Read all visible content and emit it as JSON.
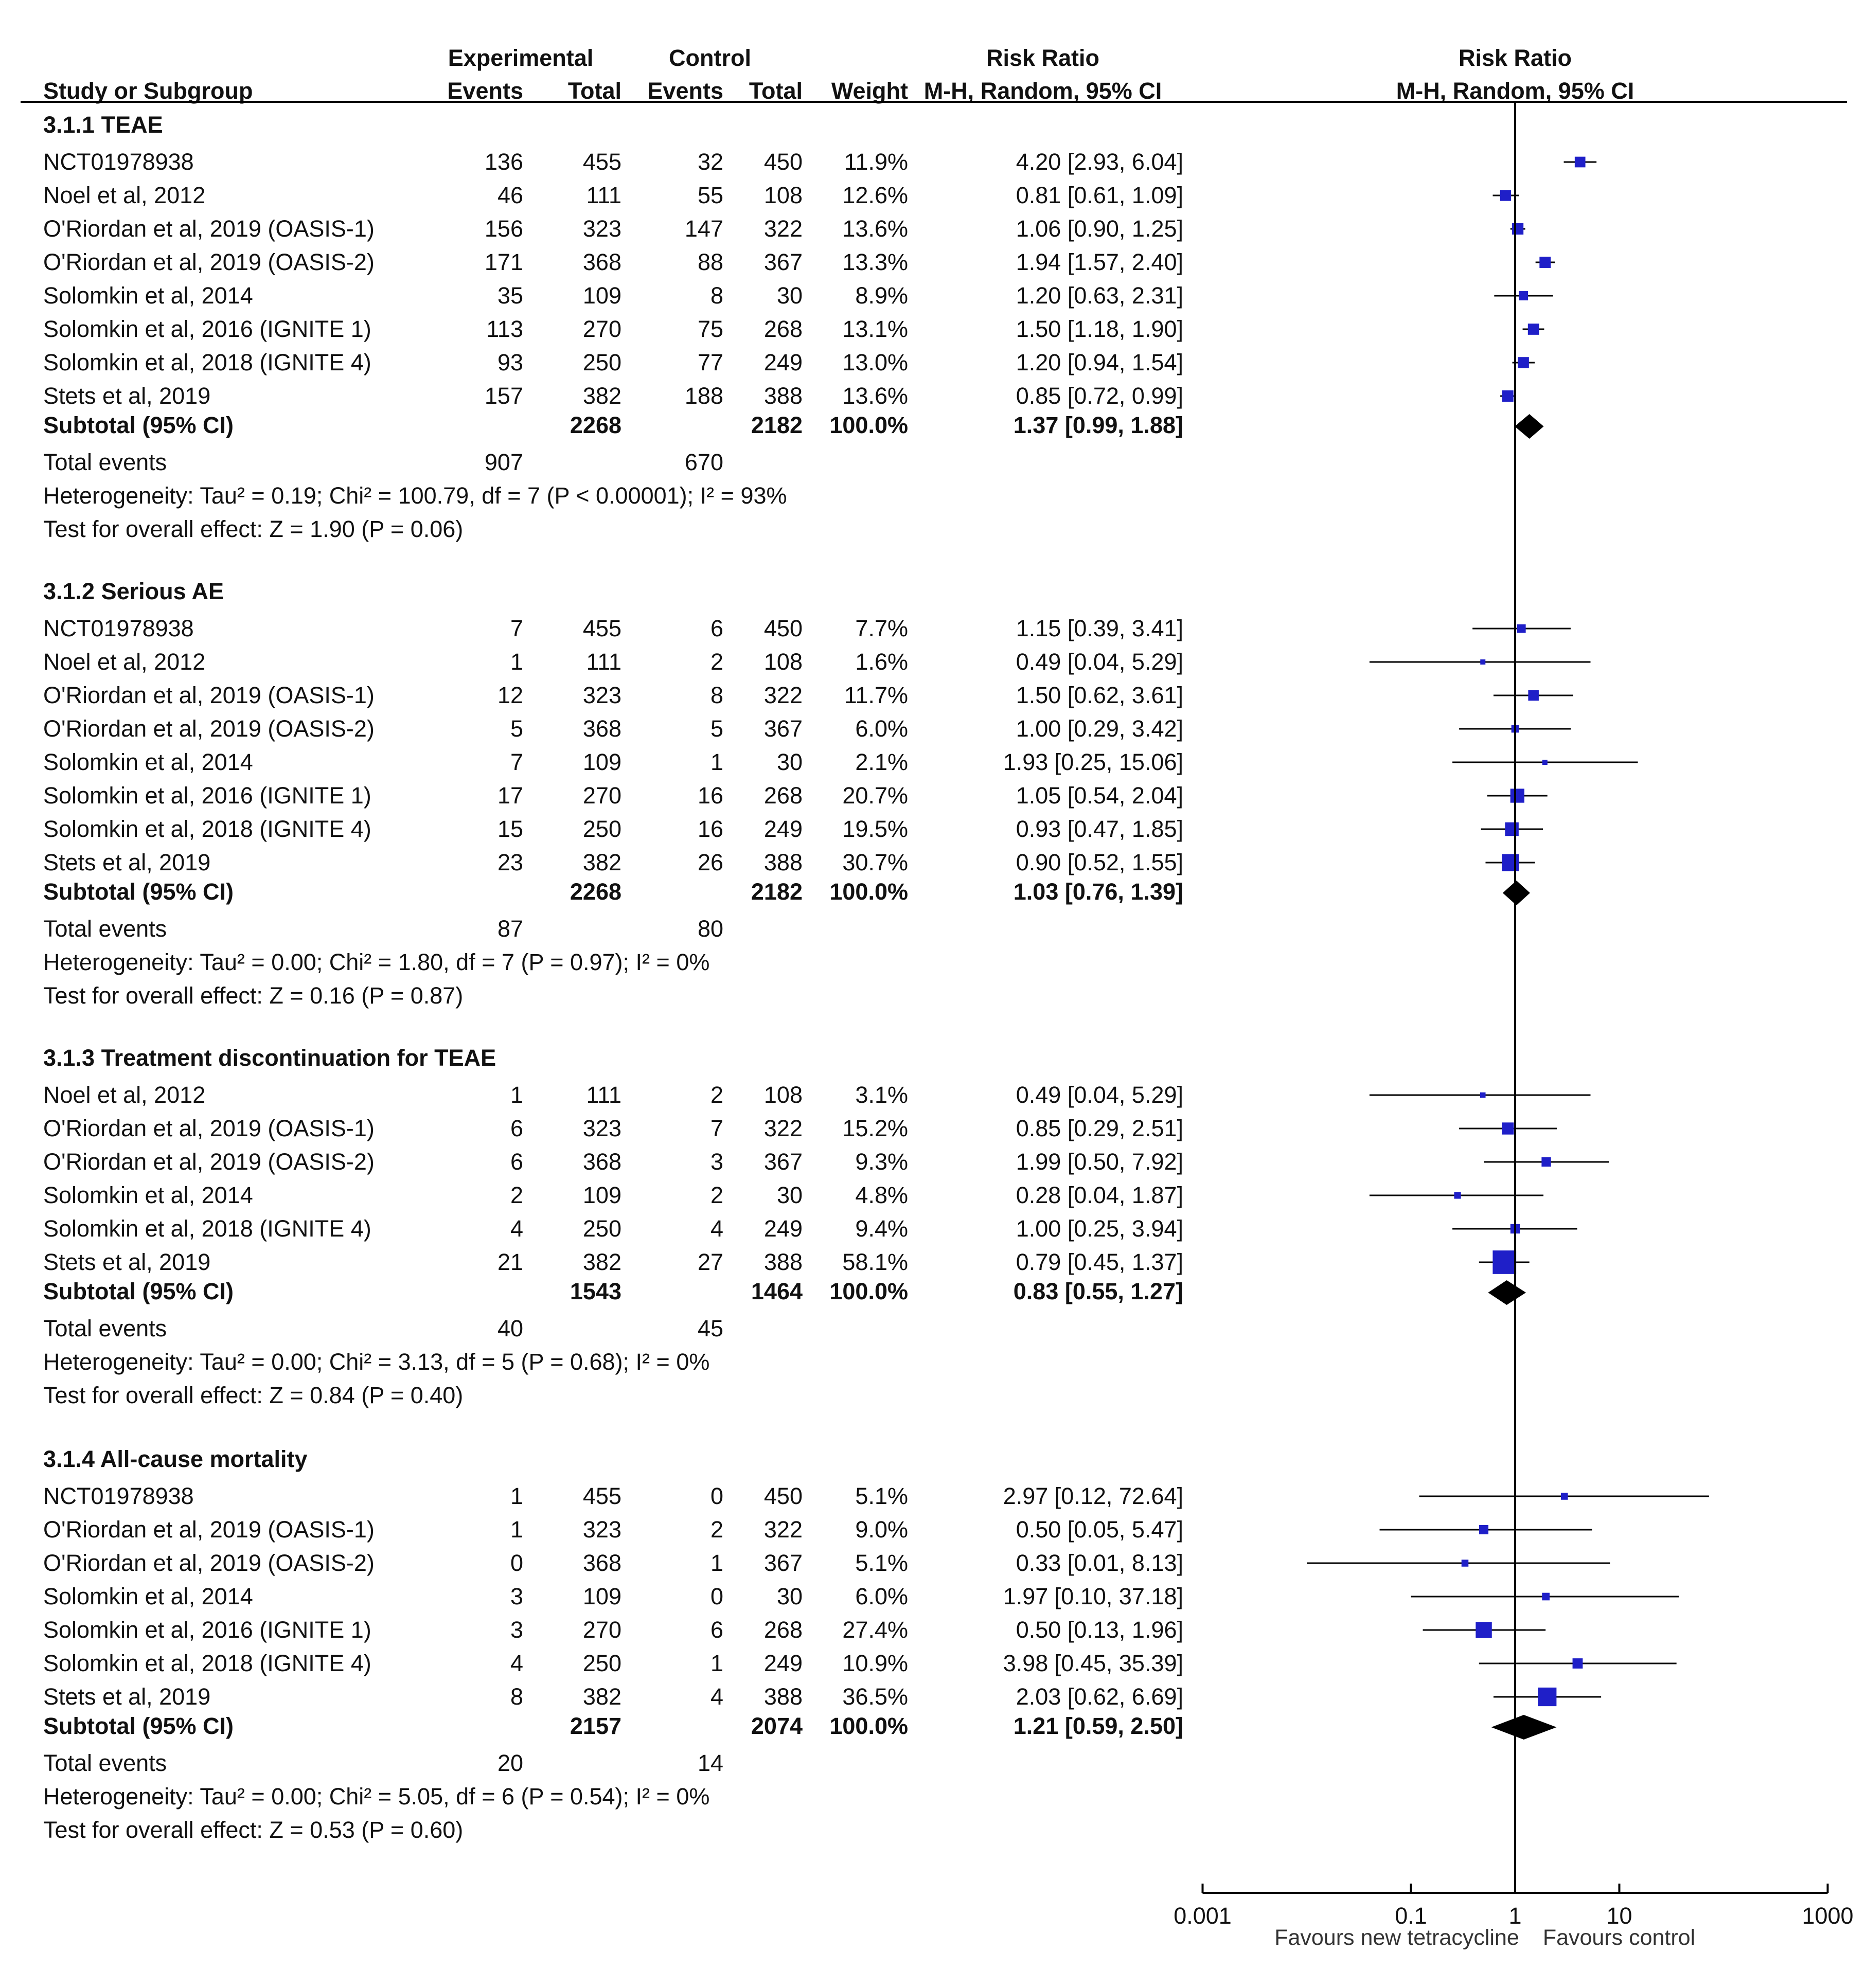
{
  "chart_data": {
    "type": "forest",
    "header": {
      "study_col": "Study or Subgroup",
      "experimental": "Experimental",
      "control": "Control",
      "events": "Events",
      "total": "Total",
      "weight": "Weight",
      "effect_title": "Risk Ratio",
      "effect_method": "M-H, Random, 95% CI",
      "plot_title": "Risk Ratio",
      "plot_method": "M-H, Random, 95% CI"
    },
    "axis": {
      "scale": "log",
      "ticks": [
        0.001,
        0.1,
        1,
        10,
        1000
      ],
      "tick_labels": [
        "0.001",
        "0.1",
        "1",
        "10",
        "1000"
      ],
      "range": [
        0.001,
        1000
      ],
      "favours_left": "Favours new tetracycline",
      "favours_right": "Favours control"
    },
    "groups": [
      {
        "title": "3.1.1 TEAE",
        "studies": [
          {
            "name": "NCT01978938",
            "exp_events": "136",
            "exp_total": "455",
            "ctl_events": "32",
            "ctl_total": "450",
            "weight": "11.9%",
            "ci_text": "4.20 [2.93, 6.04]",
            "rr": 4.2,
            "lo": 2.93,
            "hi": 6.04
          },
          {
            "name": "Noel et al, 2012",
            "exp_events": "46",
            "exp_total": "111",
            "ctl_events": "55",
            "ctl_total": "108",
            "weight": "12.6%",
            "ci_text": "0.81 [0.61, 1.09]",
            "rr": 0.81,
            "lo": 0.61,
            "hi": 1.09
          },
          {
            "name": "O'Riordan et al, 2019 (OASIS-1)",
            "exp_events": "156",
            "exp_total": "323",
            "ctl_events": "147",
            "ctl_total": "322",
            "weight": "13.6%",
            "ci_text": "1.06 [0.90, 1.25]",
            "rr": 1.06,
            "lo": 0.9,
            "hi": 1.25
          },
          {
            "name": "O'Riordan et al, 2019 (OASIS-2)",
            "exp_events": "171",
            "exp_total": "368",
            "ctl_events": "88",
            "ctl_total": "367",
            "weight": "13.3%",
            "ci_text": "1.94 [1.57, 2.40]",
            "rr": 1.94,
            "lo": 1.57,
            "hi": 2.4
          },
          {
            "name": "Solomkin et al, 2014",
            "exp_events": "35",
            "exp_total": "109",
            "ctl_events": "8",
            "ctl_total": "30",
            "weight": "8.9%",
            "ci_text": "1.20 [0.63, 2.31]",
            "rr": 1.2,
            "lo": 0.63,
            "hi": 2.31
          },
          {
            "name": "Solomkin et al, 2016 (IGNITE 1)",
            "exp_events": "113",
            "exp_total": "270",
            "ctl_events": "75",
            "ctl_total": "268",
            "weight": "13.1%",
            "ci_text": "1.50 [1.18, 1.90]",
            "rr": 1.5,
            "lo": 1.18,
            "hi": 1.9
          },
          {
            "name": "Solomkin et al, 2018 (IGNITE 4)",
            "exp_events": "93",
            "exp_total": "250",
            "ctl_events": "77",
            "ctl_total": "249",
            "weight": "13.0%",
            "ci_text": "1.20 [0.94, 1.54]",
            "rr": 1.2,
            "lo": 0.94,
            "hi": 1.54
          },
          {
            "name": "Stets et al, 2019",
            "exp_events": "157",
            "exp_total": "382",
            "ctl_events": "188",
            "ctl_total": "388",
            "weight": "13.6%",
            "ci_text": "0.85 [0.72, 0.99]",
            "rr": 0.85,
            "lo": 0.72,
            "hi": 0.99
          }
        ],
        "subtotal": {
          "label": "Subtotal (95% CI)",
          "exp_total": "2268",
          "ctl_total": "2182",
          "weight": "100.0%",
          "ci_text": "1.37 [0.99, 1.88]",
          "rr": 1.37,
          "lo": 0.99,
          "hi": 1.88
        },
        "total_events": {
          "label": "Total events",
          "exp": "907",
          "ctl": "670"
        },
        "heterogeneity": "Heterogeneity: Tau² = 0.19; Chi² = 100.79, df = 7 (P < 0.00001); I² = 93%",
        "overall": "Test for overall effect: Z = 1.90 (P = 0.06)"
      },
      {
        "title": "3.1.2 Serious AE",
        "studies": [
          {
            "name": "NCT01978938",
            "exp_events": "7",
            "exp_total": "455",
            "ctl_events": "6",
            "ctl_total": "450",
            "weight": "7.7%",
            "ci_text": "1.15 [0.39, 3.41]",
            "rr": 1.15,
            "lo": 0.39,
            "hi": 3.41
          },
          {
            "name": "Noel et al, 2012",
            "exp_events": "1",
            "exp_total": "111",
            "ctl_events": "2",
            "ctl_total": "108",
            "weight": "1.6%",
            "ci_text": "0.49 [0.04, 5.29]",
            "rr": 0.49,
            "lo": 0.04,
            "hi": 5.29
          },
          {
            "name": "O'Riordan et al, 2019 (OASIS-1)",
            "exp_events": "12",
            "exp_total": "323",
            "ctl_events": "8",
            "ctl_total": "322",
            "weight": "11.7%",
            "ci_text": "1.50 [0.62, 3.61]",
            "rr": 1.5,
            "lo": 0.62,
            "hi": 3.61
          },
          {
            "name": "O'Riordan et al, 2019 (OASIS-2)",
            "exp_events": "5",
            "exp_total": "368",
            "ctl_events": "5",
            "ctl_total": "367",
            "weight": "6.0%",
            "ci_text": "1.00 [0.29, 3.42]",
            "rr": 1.0,
            "lo": 0.29,
            "hi": 3.42
          },
          {
            "name": "Solomkin et al, 2014",
            "exp_events": "7",
            "exp_total": "109",
            "ctl_events": "1",
            "ctl_total": "30",
            "weight": "2.1%",
            "ci_text": "1.93 [0.25, 15.06]",
            "rr": 1.93,
            "lo": 0.25,
            "hi": 15.06
          },
          {
            "name": "Solomkin et al, 2016 (IGNITE 1)",
            "exp_events": "17",
            "exp_total": "270",
            "ctl_events": "16",
            "ctl_total": "268",
            "weight": "20.7%",
            "ci_text": "1.05 [0.54, 2.04]",
            "rr": 1.05,
            "lo": 0.54,
            "hi": 2.04
          },
          {
            "name": "Solomkin et al, 2018 (IGNITE 4)",
            "exp_events": "15",
            "exp_total": "250",
            "ctl_events": "16",
            "ctl_total": "249",
            "weight": "19.5%",
            "ci_text": "0.93 [0.47, 1.85]",
            "rr": 0.93,
            "lo": 0.47,
            "hi": 1.85
          },
          {
            "name": "Stets et al, 2019",
            "exp_events": "23",
            "exp_total": "382",
            "ctl_events": "26",
            "ctl_total": "388",
            "weight": "30.7%",
            "ci_text": "0.90 [0.52, 1.55]",
            "rr": 0.9,
            "lo": 0.52,
            "hi": 1.55
          }
        ],
        "subtotal": {
          "label": "Subtotal (95% CI)",
          "exp_total": "2268",
          "ctl_total": "2182",
          "weight": "100.0%",
          "ci_text": "1.03 [0.76, 1.39]",
          "rr": 1.03,
          "lo": 0.76,
          "hi": 1.39
        },
        "total_events": {
          "label": "Total events",
          "exp": "87",
          "ctl": "80"
        },
        "heterogeneity": "Heterogeneity: Tau² = 0.00; Chi² = 1.80, df = 7 (P = 0.97); I² = 0%",
        "overall": "Test for overall effect: Z = 0.16 (P = 0.87)"
      },
      {
        "title": "3.1.3 Treatment discontinuation for TEAE",
        "studies": [
          {
            "name": "Noel et al, 2012",
            "exp_events": "1",
            "exp_total": "111",
            "ctl_events": "2",
            "ctl_total": "108",
            "weight": "3.1%",
            "ci_text": "0.49 [0.04, 5.29]",
            "rr": 0.49,
            "lo": 0.04,
            "hi": 5.29
          },
          {
            "name": "O'Riordan et al, 2019 (OASIS-1)",
            "exp_events": "6",
            "exp_total": "323",
            "ctl_events": "7",
            "ctl_total": "322",
            "weight": "15.2%",
            "ci_text": "0.85 [0.29, 2.51]",
            "rr": 0.85,
            "lo": 0.29,
            "hi": 2.51
          },
          {
            "name": "O'Riordan et al, 2019 (OASIS-2)",
            "exp_events": "6",
            "exp_total": "368",
            "ctl_events": "3",
            "ctl_total": "367",
            "weight": "9.3%",
            "ci_text": "1.99 [0.50, 7.92]",
            "rr": 1.99,
            "lo": 0.5,
            "hi": 7.92
          },
          {
            "name": "Solomkin et al, 2014",
            "exp_events": "2",
            "exp_total": "109",
            "ctl_events": "2",
            "ctl_total": "30",
            "weight": "4.8%",
            "ci_text": "0.28 [0.04, 1.87]",
            "rr": 0.28,
            "lo": 0.04,
            "hi": 1.87
          },
          {
            "name": "Solomkin et al, 2018 (IGNITE 4)",
            "exp_events": "4",
            "exp_total": "250",
            "ctl_events": "4",
            "ctl_total": "249",
            "weight": "9.4%",
            "ci_text": "1.00 [0.25, 3.94]",
            "rr": 1.0,
            "lo": 0.25,
            "hi": 3.94
          },
          {
            "name": "Stets et al, 2019",
            "exp_events": "21",
            "exp_total": "382",
            "ctl_events": "27",
            "ctl_total": "388",
            "weight": "58.1%",
            "ci_text": "0.79 [0.45, 1.37]",
            "rr": 0.79,
            "lo": 0.45,
            "hi": 1.37
          }
        ],
        "subtotal": {
          "label": "Subtotal (95% CI)",
          "exp_total": "1543",
          "ctl_total": "1464",
          "weight": "100.0%",
          "ci_text": "0.83 [0.55, 1.27]",
          "rr": 0.83,
          "lo": 0.55,
          "hi": 1.27
        },
        "total_events": {
          "label": "Total events",
          "exp": "40",
          "ctl": "45"
        },
        "heterogeneity": "Heterogeneity: Tau² = 0.00; Chi² = 3.13, df = 5 (P = 0.68); I² = 0%",
        "overall": "Test for overall effect: Z = 0.84 (P = 0.40)"
      },
      {
        "title": "3.1.4 All-cause mortality",
        "studies": [
          {
            "name": "NCT01978938",
            "exp_events": "1",
            "exp_total": "455",
            "ctl_events": "0",
            "ctl_total": "450",
            "weight": "5.1%",
            "ci_text": "2.97 [0.12, 72.64]",
            "rr": 2.97,
            "lo": 0.12,
            "hi": 72.64
          },
          {
            "name": "O'Riordan et al, 2019 (OASIS-1)",
            "exp_events": "1",
            "exp_total": "323",
            "ctl_events": "2",
            "ctl_total": "322",
            "weight": "9.0%",
            "ci_text": "0.50 [0.05, 5.47]",
            "rr": 0.5,
            "lo": 0.05,
            "hi": 5.47
          },
          {
            "name": "O'Riordan et al, 2019 (OASIS-2)",
            "exp_events": "0",
            "exp_total": "368",
            "ctl_events": "1",
            "ctl_total": "367",
            "weight": "5.1%",
            "ci_text": "0.33 [0.01, 8.13]",
            "rr": 0.33,
            "lo": 0.01,
            "hi": 8.13
          },
          {
            "name": "Solomkin et al, 2014",
            "exp_events": "3",
            "exp_total": "109",
            "ctl_events": "0",
            "ctl_total": "30",
            "weight": "6.0%",
            "ci_text": "1.97 [0.10, 37.18]",
            "rr": 1.97,
            "lo": 0.1,
            "hi": 37.18
          },
          {
            "name": "Solomkin et al, 2016 (IGNITE 1)",
            "exp_events": "3",
            "exp_total": "270",
            "ctl_events": "6",
            "ctl_total": "268",
            "weight": "27.4%",
            "ci_text": "0.50 [0.13, 1.96]",
            "rr": 0.5,
            "lo": 0.13,
            "hi": 1.96
          },
          {
            "name": "Solomkin et al, 2018 (IGNITE 4)",
            "exp_events": "4",
            "exp_total": "250",
            "ctl_events": "1",
            "ctl_total": "249",
            "weight": "10.9%",
            "ci_text": "3.98 [0.45, 35.39]",
            "rr": 3.98,
            "lo": 0.45,
            "hi": 35.39
          },
          {
            "name": "Stets et al, 2019",
            "exp_events": "8",
            "exp_total": "382",
            "ctl_events": "4",
            "ctl_total": "388",
            "weight": "36.5%",
            "ci_text": "2.03 [0.62, 6.69]",
            "rr": 2.03,
            "lo": 0.62,
            "hi": 6.69
          }
        ],
        "subtotal": {
          "label": "Subtotal (95% CI)",
          "exp_total": "2157",
          "ctl_total": "2074",
          "weight": "100.0%",
          "ci_text": "1.21 [0.59, 2.50]",
          "rr": 1.21,
          "lo": 0.59,
          "hi": 2.5
        },
        "total_events": {
          "label": "Total events",
          "exp": "20",
          "ctl": "14"
        },
        "heterogeneity": "Heterogeneity: Tau² = 0.00; Chi² = 5.05, df = 6 (P = 0.54); I² = 0%",
        "overall": "Test for overall effect: Z = 0.53 (P = 0.60)"
      }
    ],
    "colors": {
      "marker": "#1f1fc8",
      "diamond": "#000000",
      "line": "#000000",
      "text": "#111111"
    }
  }
}
